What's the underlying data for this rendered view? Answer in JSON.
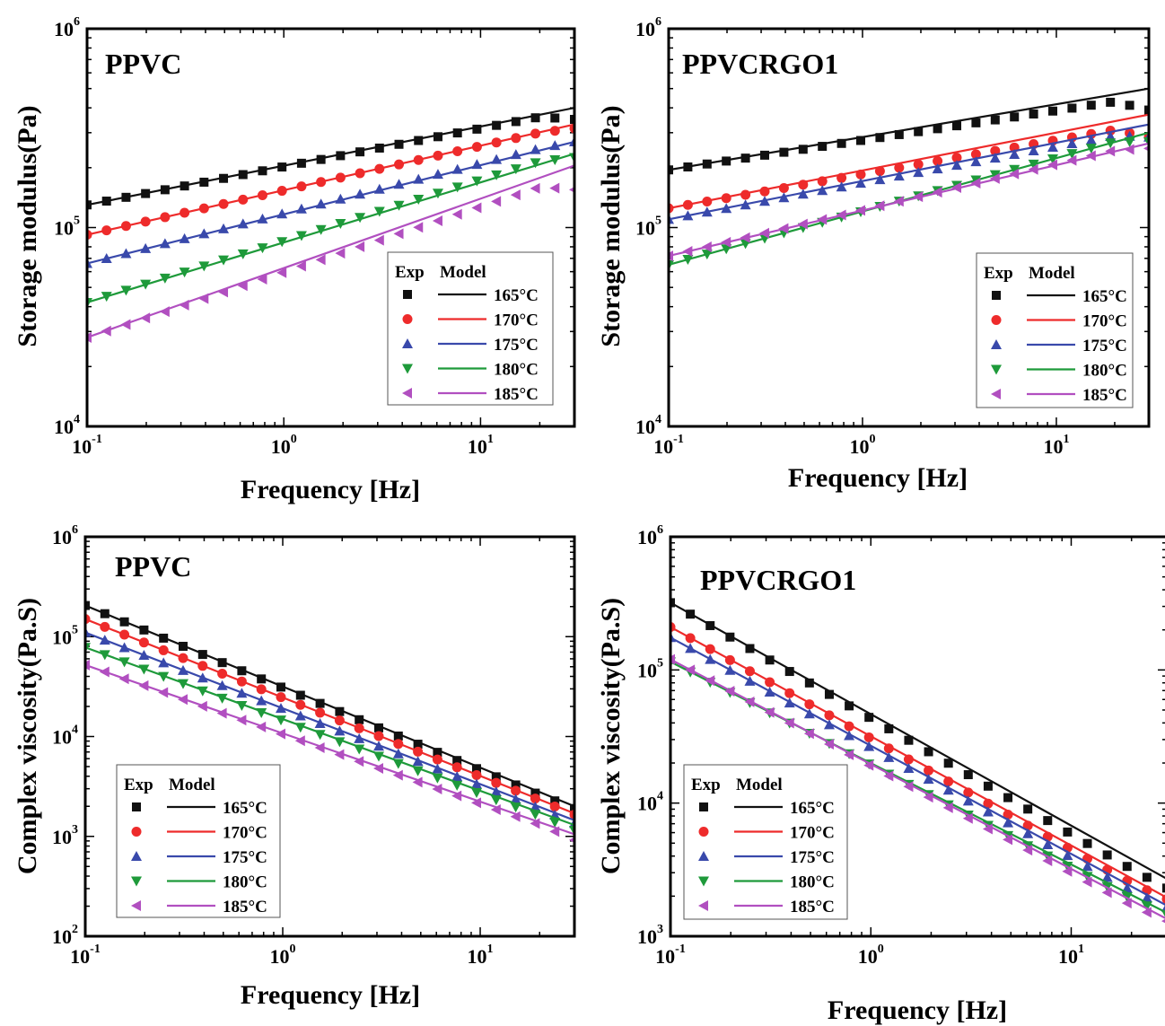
{
  "chart_data": [
    {
      "type": "line",
      "panel_label": "PPVC",
      "xlabel": "Frequency [Hz]",
      "ylabel": "Storage modulus(Pa)",
      "xscale": "log",
      "yscale": "log",
      "xlim": [
        0.1,
        30
      ],
      "ylim": [
        10000,
        1000000
      ],
      "xticks": [
        0.1,
        1,
        10
      ],
      "yticks": [
        10000,
        100000,
        1000000
      ],
      "legend": {
        "position": "bottom-right",
        "headers": [
          "Exp",
          "Model"
        ]
      },
      "series": [
        {
          "name": "165°C",
          "color": "#111111",
          "marker": "square",
          "model": [
            [
              0.1,
              130000
            ],
            [
              30,
              400000
            ]
          ],
          "exp_end": [
            [
              20,
              360000
            ],
            [
              30,
              350000
            ]
          ]
        },
        {
          "name": "170°C",
          "color": "#ee2b2b",
          "marker": "circle",
          "model": [
            [
              0.1,
              92000
            ],
            [
              30,
              330000
            ]
          ],
          "exp_end": [
            [
              20,
              300000
            ],
            [
              30,
              315000
            ]
          ]
        },
        {
          "name": "175°C",
          "color": "#3949ab",
          "marker": "triangle-up",
          "model": [
            [
              0.1,
              66000
            ],
            [
              30,
              270000
            ]
          ],
          "exp_end": [
            [
              20,
              250000
            ],
            [
              30,
              270000
            ]
          ]
        },
        {
          "name": "180°C",
          "color": "#1e9a3a",
          "marker": "triangle-down",
          "model": [
            [
              0.1,
              42000
            ],
            [
              30,
              235000
            ]
          ],
          "exp_end": [
            [
              20,
              215000
            ],
            [
              30,
              225000
            ]
          ]
        },
        {
          "name": "185°C",
          "color": "#b14fc0",
          "marker": "triangle-left",
          "model": [
            [
              0.1,
              28000
            ],
            [
              30,
              205000
            ]
          ],
          "exp_end": [
            [
              20,
              160000
            ],
            [
              30,
              155000
            ]
          ]
        }
      ]
    },
    {
      "type": "line",
      "panel_label": "PPVCRGO1",
      "xlabel": "Frequency [Hz]",
      "ylabel": "Storage modulus(Pa)",
      "xscale": "log",
      "yscale": "log",
      "xlim": [
        0.1,
        30
      ],
      "ylim": [
        10000,
        1000000
      ],
      "xticks": [
        0.1,
        1,
        10
      ],
      "yticks": [
        10000,
        100000,
        1000000
      ],
      "legend": {
        "position": "bottom-right",
        "headers": [
          "Exp",
          "Model"
        ]
      },
      "series": [
        {
          "name": "165°C",
          "color": "#111111",
          "marker": "square",
          "model": [
            [
              0.1,
              195000
            ],
            [
              30,
              500000
            ]
          ],
          "exp_end": [
            [
              20,
              430000
            ],
            [
              30,
              390000
            ]
          ]
        },
        {
          "name": "170°C",
          "color": "#ee2b2b",
          "marker": "circle",
          "model": [
            [
              0.1,
              125000
            ],
            [
              30,
              370000
            ]
          ],
          "exp_end": [
            [
              20,
              310000
            ],
            [
              30,
              285000
            ]
          ]
        },
        {
          "name": "175°C",
          "color": "#3949ab",
          "marker": "triangle-up",
          "model": [
            [
              0.1,
              110000
            ],
            [
              30,
              330000
            ]
          ],
          "exp_end": [
            [
              20,
              290000
            ],
            [
              30,
              285000
            ]
          ]
        },
        {
          "name": "180°C",
          "color": "#1e9a3a",
          "marker": "triangle-down",
          "model": [
            [
              0.1,
              65000
            ],
            [
              30,
              300000
            ]
          ],
          "exp_end": [
            [
              20,
              270000
            ],
            [
              30,
              270000
            ]
          ]
        },
        {
          "name": "185°C",
          "color": "#b14fc0",
          "marker": "triangle-left",
          "model": [
            [
              0.1,
              72000
            ],
            [
              30,
              265000
            ]
          ],
          "exp_end": [
            [
              20,
              245000
            ],
            [
              30,
              250000
            ]
          ]
        }
      ]
    },
    {
      "type": "line",
      "panel_label": "PPVC",
      "xlabel": "Frequency [Hz]",
      "ylabel": "Complex viscosity(Pa.S)",
      "xscale": "log",
      "yscale": "log",
      "xlim": [
        0.1,
        30
      ],
      "ylim": [
        100,
        1000000
      ],
      "xticks": [
        0.1,
        1,
        10
      ],
      "yticks": [
        100,
        1000,
        10000,
        100000,
        1000000
      ],
      "legend": {
        "position": "bottom-left",
        "headers": [
          "Exp",
          "Model"
        ]
      },
      "series": [
        {
          "name": "165°C",
          "color": "#111111",
          "marker": "square",
          "model": [
            [
              0.1,
              205000
            ],
            [
              30,
              2000
            ]
          ],
          "exp_end": [
            [
              20,
              2600
            ],
            [
              30,
              1900
            ]
          ]
        },
        {
          "name": "170°C",
          "color": "#ee2b2b",
          "marker": "circle",
          "model": [
            [
              0.1,
              150000
            ],
            [
              30,
              1700
            ]
          ],
          "exp_end": [
            [
              20,
              2300
            ],
            [
              30,
              1650
            ]
          ]
        },
        {
          "name": "175°C",
          "color": "#3949ab",
          "marker": "triangle-up",
          "model": [
            [
              0.1,
              110000
            ],
            [
              30,
              1450
            ]
          ],
          "exp_end": [
            [
              20,
              1900
            ],
            [
              30,
              1350
            ]
          ]
        },
        {
          "name": "180°C",
          "color": "#1e9a3a",
          "marker": "triangle-down",
          "model": [
            [
              0.1,
              78000
            ],
            [
              30,
              1300
            ]
          ],
          "exp_end": [
            [
              20,
              1600
            ],
            [
              30,
              1150
            ]
          ]
        },
        {
          "name": "185°C",
          "color": "#b14fc0",
          "marker": "triangle-left",
          "model": [
            [
              0.1,
              52000
            ],
            [
              30,
              1050
            ]
          ],
          "exp_end": [
            [
              20,
              1300
            ],
            [
              30,
              920
            ]
          ]
        }
      ]
    },
    {
      "type": "line",
      "panel_label": "PPVCRGO1",
      "xlabel": "Frequency [Hz]",
      "ylabel": "Complex viscosity(Pa.S)",
      "xscale": "log",
      "yscale": "log",
      "xlim": [
        0.1,
        30
      ],
      "ylim": [
        1000,
        1000000
      ],
      "xticks": [
        0.1,
        1,
        10
      ],
      "yticks": [
        1000,
        10000,
        100000,
        1000000
      ],
      "legend": {
        "position": "bottom-left",
        "headers": [
          "Exp",
          "Model"
        ]
      },
      "series": [
        {
          "name": "165°C",
          "color": "#111111",
          "marker": "square",
          "model": [
            [
              0.1,
              320000
            ],
            [
              30,
              2700
            ]
          ],
          "exp_end": [
            [
              20,
              3200
            ],
            [
              30,
              2300
            ]
          ]
        },
        {
          "name": "170°C",
          "color": "#ee2b2b",
          "marker": "circle",
          "model": [
            [
              0.1,
              210000
            ],
            [
              30,
              1950
            ]
          ],
          "exp_end": [
            [
              20,
              2500
            ],
            [
              30,
              1900
            ]
          ]
        },
        {
          "name": "175°C",
          "color": "#3949ab",
          "marker": "triangle-up",
          "model": [
            [
              0.1,
              175000
            ],
            [
              30,
              1700
            ]
          ],
          "exp_end": [
            [
              20,
              2200
            ],
            [
              30,
              1650
            ]
          ]
        },
        {
          "name": "180°C",
          "color": "#1e9a3a",
          "marker": "triangle-down",
          "model": [
            [
              0.1,
              115000
            ],
            [
              30,
              1500
            ]
          ],
          "exp_end": [
            [
              20,
              1900
            ],
            [
              30,
              1450
            ]
          ]
        },
        {
          "name": "185°C",
          "color": "#b14fc0",
          "marker": "triangle-left",
          "model": [
            [
              0.1,
              120000
            ],
            [
              30,
              1350
            ]
          ],
          "exp_end": [
            [
              20,
              1700
            ],
            [
              30,
              1300
            ]
          ]
        }
      ]
    }
  ]
}
